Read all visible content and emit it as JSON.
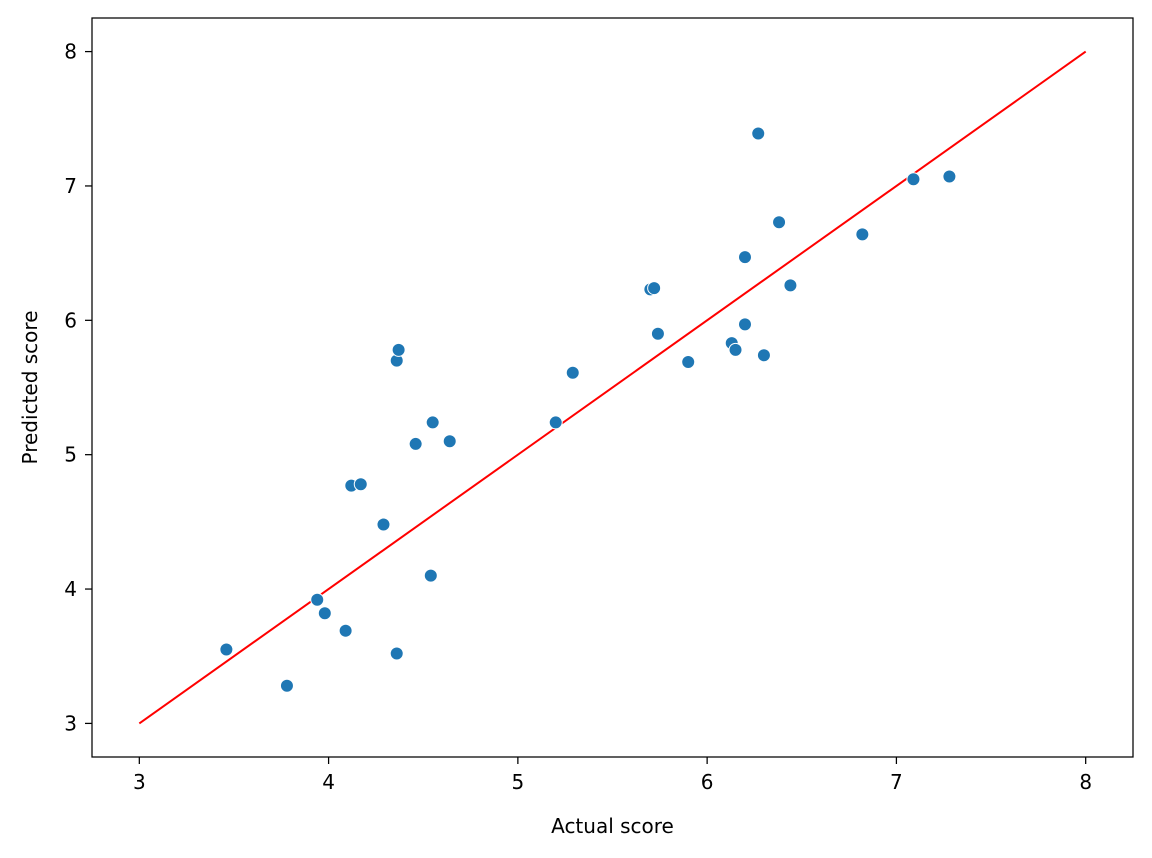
{
  "chart_data": {
    "type": "scatter",
    "title": "",
    "xlabel": "Actual score",
    "ylabel": "Predicted score",
    "xlim": [
      2.75,
      8.25
    ],
    "ylim": [
      2.75,
      8.25
    ],
    "xticks": [
      3,
      4,
      5,
      6,
      7,
      8
    ],
    "yticks": [
      3,
      4,
      5,
      6,
      7,
      8
    ],
    "grid": false,
    "colors": {
      "points": "#1f77b4",
      "point_edge": "#ffffff",
      "reference_line": "#ff0000",
      "axes": "#000000"
    },
    "reference_line": {
      "x": [
        3,
        8
      ],
      "y": [
        3,
        8
      ]
    },
    "series": [
      {
        "x": [
          3.46,
          3.78,
          3.94,
          3.98,
          4.09,
          4.12,
          4.17,
          4.29,
          4.36,
          4.36,
          4.37,
          4.46,
          4.54,
          4.55,
          4.64,
          5.2,
          5.29,
          5.7,
          5.72,
          5.74,
          5.9,
          6.13,
          6.15,
          6.2,
          6.2,
          6.27,
          6.3,
          6.38,
          6.44,
          6.82,
          7.09,
          7.28
        ],
        "y": [
          3.55,
          3.28,
          3.92,
          3.82,
          3.69,
          4.77,
          4.78,
          4.48,
          3.52,
          5.7,
          5.78,
          5.08,
          4.1,
          5.24,
          5.1,
          5.24,
          5.61,
          6.23,
          6.24,
          5.9,
          5.69,
          5.83,
          5.78,
          5.97,
          6.47,
          7.39,
          5.74,
          6.73,
          6.26,
          6.64,
          7.05,
          7.07
        ]
      }
    ]
  }
}
